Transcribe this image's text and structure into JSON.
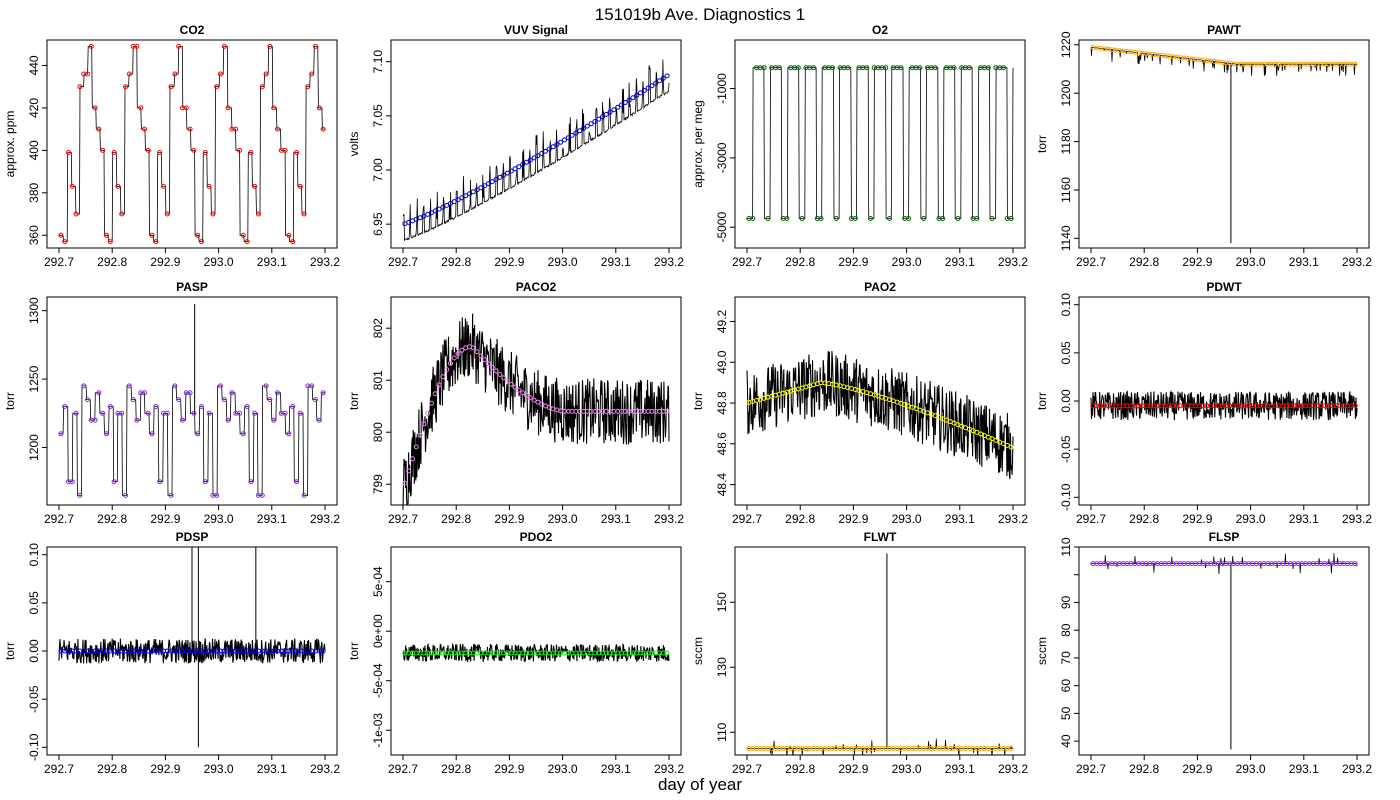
{
  "figure": {
    "title": "151019b   Ave. Diagnostics 1",
    "xlabel": "day of year"
  },
  "chart_data": [
    {
      "type": "line",
      "title": "CO2",
      "ylabel": "approx. ppm",
      "xlim": [
        292.7,
        293.2
      ],
      "ylim": [
        354,
        452
      ],
      "xticks": [
        292.7,
        292.8,
        292.9,
        293.0,
        293.1,
        293.2
      ],
      "xtick_labels": [
        "292.7",
        "292.8",
        "292.9",
        "293.0",
        "293.1",
        "293.2"
      ],
      "yticks": [
        360,
        380,
        400,
        420,
        440
      ],
      "ytick_labels": [
        "360",
        "380",
        "400",
        "420",
        "440"
      ],
      "pattern": "steps",
      "levels": [
        360,
        357,
        399,
        383,
        370,
        430,
        436,
        449,
        420,
        410,
        400
      ],
      "period": 0.085,
      "raw_color": "#000000",
      "mean_color": "#ff0000",
      "marker": "o"
    },
    {
      "type": "line",
      "title": "VUV Signal",
      "ylabel": "volts",
      "xlim": [
        292.7,
        293.2
      ],
      "ylim": [
        6.928,
        7.12
      ],
      "xticks": [
        292.7,
        292.8,
        292.9,
        293.0,
        293.1,
        293.2
      ],
      "xtick_labels": [
        "292.7",
        "292.8",
        "292.9",
        "293.0",
        "293.1",
        "293.2"
      ],
      "yticks": [
        6.95,
        7.0,
        7.05,
        7.1
      ],
      "ytick_labels": [
        "6.95",
        "7.00",
        "7.05",
        "7.10"
      ],
      "pattern": "ramp",
      "start": 6.935,
      "end": 7.073,
      "spike_height": 0.035,
      "raw_color": "#000000",
      "mean_color": "#0000cc",
      "marker": "o"
    },
    {
      "type": "line",
      "title": "O2",
      "ylabel": "approx. per meg",
      "xlim": [
        292.7,
        293.2
      ],
      "ylim": [
        -5600,
        400
      ],
      "xticks": [
        292.7,
        292.8,
        292.9,
        293.0,
        293.1,
        293.2
      ],
      "xtick_labels": [
        "292.7",
        "292.8",
        "292.9",
        "293.0",
        "293.1",
        "293.2"
      ],
      "yticks": [
        -5000,
        -3000,
        -1000
      ],
      "ytick_labels": [
        "-5000",
        "-3000",
        "-1000"
      ],
      "pattern": "square",
      "high": -400,
      "low": -4750,
      "raw_color": "#000000",
      "mean_color": "#006400",
      "marker": "o"
    },
    {
      "type": "line",
      "title": "PAWT",
      "ylabel": "torr",
      "xlim": [
        292.7,
        293.2
      ],
      "ylim": [
        1136,
        1222
      ],
      "xticks": [
        292.7,
        292.8,
        292.9,
        293.0,
        293.1,
        293.2
      ],
      "xtick_labels": [
        "292.7",
        "292.8",
        "292.9",
        "293.0",
        "293.1",
        "293.2"
      ],
      "yticks": [
        1140,
        1160,
        1180,
        1200,
        1220
      ],
      "ytick_labels": [
        "1140",
        "1160",
        "1180",
        "1200",
        "1220"
      ],
      "pattern": "decline",
      "start": 1219,
      "end": 1212,
      "spike_x": 292.963,
      "spike_min": 1138,
      "raw_color": "#000000",
      "mean_color": "#ffa500",
      "marker": "o"
    },
    {
      "type": "line",
      "title": "PASP",
      "ylabel": "torr",
      "xlim": [
        292.7,
        293.2
      ],
      "ylim": [
        1158,
        1310
      ],
      "xticks": [
        292.7,
        292.8,
        292.9,
        293.0,
        293.1,
        293.2
      ],
      "xtick_labels": [
        "292.7",
        "292.8",
        "292.9",
        "293.0",
        "293.1",
        "293.2"
      ],
      "yticks": [
        1200,
        1250,
        1300
      ],
      "ytick_labels": [
        "1200",
        "1250",
        "1300"
      ],
      "pattern": "steps",
      "levels": [
        1210,
        1230,
        1175,
        1225,
        1165,
        1245,
        1235,
        1220,
        1240,
        1225
      ],
      "period": 0.085,
      "spike_x": 292.955,
      "spike_max": 1305,
      "raw_color": "#000000",
      "mean_color": "#8a2be2",
      "marker": "o"
    },
    {
      "type": "line",
      "title": "PACO2",
      "ylabel": "torr",
      "xlim": [
        292.7,
        293.2
      ],
      "ylim": [
        798.6,
        802.6
      ],
      "xticks": [
        292.7,
        292.8,
        292.9,
        293.0,
        293.1,
        293.2
      ],
      "xtick_labels": [
        "292.7",
        "292.8",
        "292.9",
        "293.0",
        "293.1",
        "293.2"
      ],
      "yticks": [
        799,
        800,
        801,
        802
      ],
      "ytick_labels": [
        "799",
        "800",
        "801",
        "802"
      ],
      "pattern": "hump",
      "base": 800.4,
      "start": 798.9,
      "peak": 801.65,
      "peak_x": 292.83,
      "raw_color": "#000000",
      "mean_color": "#ee82ee",
      "marker": "o"
    },
    {
      "type": "line",
      "title": "PAO2",
      "ylabel": "torr",
      "xlim": [
        292.7,
        293.2
      ],
      "ylim": [
        48.3,
        49.32
      ],
      "xticks": [
        292.7,
        292.8,
        292.9,
        293.0,
        293.1,
        293.2
      ],
      "xtick_labels": [
        "292.7",
        "292.8",
        "292.9",
        "293.0",
        "293.1",
        "293.2"
      ],
      "yticks": [
        48.4,
        48.6,
        48.8,
        49.0,
        49.2
      ],
      "ytick_labels": [
        "48.4",
        "48.6",
        "48.8",
        "49.0",
        "49.2"
      ],
      "pattern": "hill",
      "start": 48.8,
      "peak": 48.9,
      "peak_x": 292.84,
      "end": 48.58,
      "raw_color": "#000000",
      "mean_color": "#ffff00",
      "marker": "o"
    },
    {
      "type": "line",
      "title": "PDWT",
      "ylabel": "torr",
      "xlim": [
        292.7,
        293.2
      ],
      "ylim": [
        -0.108,
        0.108
      ],
      "xticks": [
        292.7,
        292.8,
        292.9,
        293.0,
        293.1,
        293.2
      ],
      "xtick_labels": [
        "292.7",
        "292.8",
        "292.9",
        "293.0",
        "293.1",
        "293.2"
      ],
      "yticks": [
        -0.1,
        -0.05,
        0.0,
        0.05,
        0.1
      ],
      "ytick_labels": [
        "-0.10",
        "-0.05",
        "0.00",
        "0.05",
        "0.10"
      ],
      "pattern": "noise",
      "center": -0.005,
      "amp": 0.015,
      "raw_color": "#000000",
      "mean_color": "#ff0000",
      "marker": "o"
    },
    {
      "type": "line",
      "title": "PDSP",
      "ylabel": "torr",
      "xlim": [
        292.7,
        293.2
      ],
      "ylim": [
        -0.108,
        0.108
      ],
      "xticks": [
        292.7,
        292.8,
        292.9,
        293.0,
        293.1,
        293.2
      ],
      "xtick_labels": [
        "292.7",
        "292.8",
        "292.9",
        "293.0",
        "293.1",
        "293.2"
      ],
      "yticks": [
        -0.1,
        -0.05,
        0.0,
        0.05,
        0.1
      ],
      "ytick_labels": [
        "-0.10",
        "-0.05",
        "0.00",
        "0.05",
        "0.10"
      ],
      "pattern": "noise",
      "center": 0.0,
      "amp": 0.013,
      "raw_color": "#000000",
      "mean_color": "#0000ff",
      "marker": "o"
    },
    {
      "type": "line",
      "title": "PDO2",
      "ylabel": "torr",
      "xlim": [
        292.7,
        293.2
      ],
      "ylim": [
        -0.00125,
        0.00085
      ],
      "xticks": [
        292.7,
        292.8,
        292.9,
        293.0,
        293.1,
        293.2
      ],
      "xtick_labels": [
        "292.7",
        "292.8",
        "292.9",
        "293.0",
        "293.1",
        "293.2"
      ],
      "yticks": [
        -0.001,
        -0.0005,
        0.0,
        0.0005
      ],
      "ytick_labels": [
        "-1e-03",
        "-5e-04",
        "0e+00",
        "5e-04"
      ],
      "pattern": "noise",
      "center": -0.00022,
      "amp": 9e-05,
      "raw_color": "#000000",
      "mean_color": "#00ff00",
      "marker": "o"
    },
    {
      "type": "line",
      "title": "FLWT",
      "ylabel": "sccm",
      "xlim": [
        292.7,
        293.2
      ],
      "ylim": [
        103,
        167
      ],
      "xticks": [
        292.7,
        292.8,
        292.9,
        293.0,
        293.1,
        293.2
      ],
      "xtick_labels": [
        "292.7",
        "292.8",
        "292.9",
        "293.0",
        "293.1",
        "293.2"
      ],
      "yticks": [
        110,
        130,
        150
      ],
      "ytick_labels": [
        "110",
        "130",
        "150"
      ],
      "pattern": "flat",
      "center": 105,
      "spike_x": 292.963,
      "spike_max": 165,
      "raw_color": "#000000",
      "mean_color": "#ffa500",
      "marker": "o"
    },
    {
      "type": "line",
      "title": "FLSP",
      "ylabel": "sccm",
      "xlim": [
        292.7,
        293.2
      ],
      "ylim": [
        35,
        110
      ],
      "xticks": [
        292.7,
        292.8,
        292.9,
        293.0,
        293.1,
        293.2
      ],
      "xtick_labels": [
        "292.7",
        "292.8",
        "292.9",
        "293.0",
        "293.1",
        "293.2"
      ],
      "yticks": [
        40,
        50,
        60,
        70,
        80,
        90,
        100,
        110
      ],
      "ytick_labels": [
        "40",
        "50",
        "60",
        "70",
        "80",
        "90",
        "",
        "110"
      ],
      "pattern": "flat_hi",
      "center": 104,
      "spike_x": 292.963,
      "spike_min": 37,
      "raw_color": "#000000",
      "mean_color": "#a020f0",
      "marker": "o"
    }
  ]
}
